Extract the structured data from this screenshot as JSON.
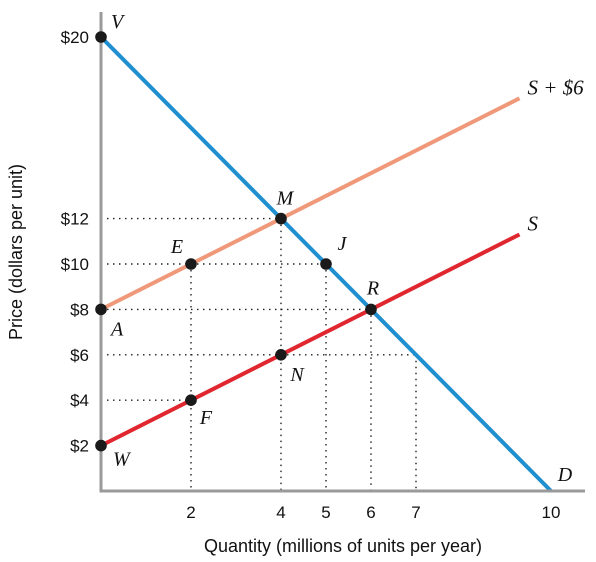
{
  "chart_data": {
    "type": "line",
    "xlabel": "Quantity (millions of units per year)",
    "ylabel": "Price (dollars per unit)",
    "xlim": [
      0,
      10
    ],
    "ylim": [
      0,
      20
    ],
    "x_ticks": [
      2,
      4,
      5,
      6,
      7,
      10
    ],
    "y_ticks": [
      {
        "value": 2,
        "label": "$2"
      },
      {
        "value": 4,
        "label": "$4"
      },
      {
        "value": 6,
        "label": "$6"
      },
      {
        "value": 8,
        "label": "$8"
      },
      {
        "value": 10,
        "label": "$10"
      },
      {
        "value": 12,
        "label": "$12"
      },
      {
        "value": 20,
        "label": "$20"
      }
    ],
    "series": [
      {
        "name": "D",
        "color": "#1f8fcf",
        "x": [
          0,
          10
        ],
        "y": [
          20,
          0
        ]
      },
      {
        "name": "S + $6",
        "color": "#f0997a",
        "x": [
          0,
          9.3
        ],
        "y": [
          8,
          17.3
        ]
      },
      {
        "name": "S",
        "color": "#e0262e",
        "x": [
          0,
          9.3
        ],
        "y": [
          2,
          11.3
        ]
      }
    ],
    "points": [
      {
        "label": "V",
        "x": 0,
        "y": 20
      },
      {
        "label": "A",
        "x": 0,
        "y": 8
      },
      {
        "label": "W",
        "x": 0,
        "y": 2
      },
      {
        "label": "M",
        "x": 4,
        "y": 12
      },
      {
        "label": "E",
        "x": 2,
        "y": 10
      },
      {
        "label": "J",
        "x": 5,
        "y": 10
      },
      {
        "label": "R",
        "x": 6,
        "y": 8
      },
      {
        "label": "N",
        "x": 4,
        "y": 6
      },
      {
        "label": "F",
        "x": 2,
        "y": 4
      },
      {
        "label": "D",
        "x": 10,
        "y": 0,
        "marker": false
      }
    ],
    "guides": {
      "horizontal": [
        {
          "y": 12,
          "x_end": 4
        },
        {
          "y": 10,
          "x_end": 5
        },
        {
          "y": 8,
          "x_end": 6
        },
        {
          "y": 6,
          "x_end": 7
        },
        {
          "y": 4,
          "x_end": 2
        }
      ],
      "vertical": [
        {
          "x": 2,
          "y_top": 10
        },
        {
          "x": 4,
          "y_top": 12
        },
        {
          "x": 5,
          "y_top": 10
        },
        {
          "x": 6,
          "y_top": 8
        },
        {
          "x": 7,
          "y_top": 6
        }
      ]
    },
    "grid": false,
    "legend": "none"
  }
}
